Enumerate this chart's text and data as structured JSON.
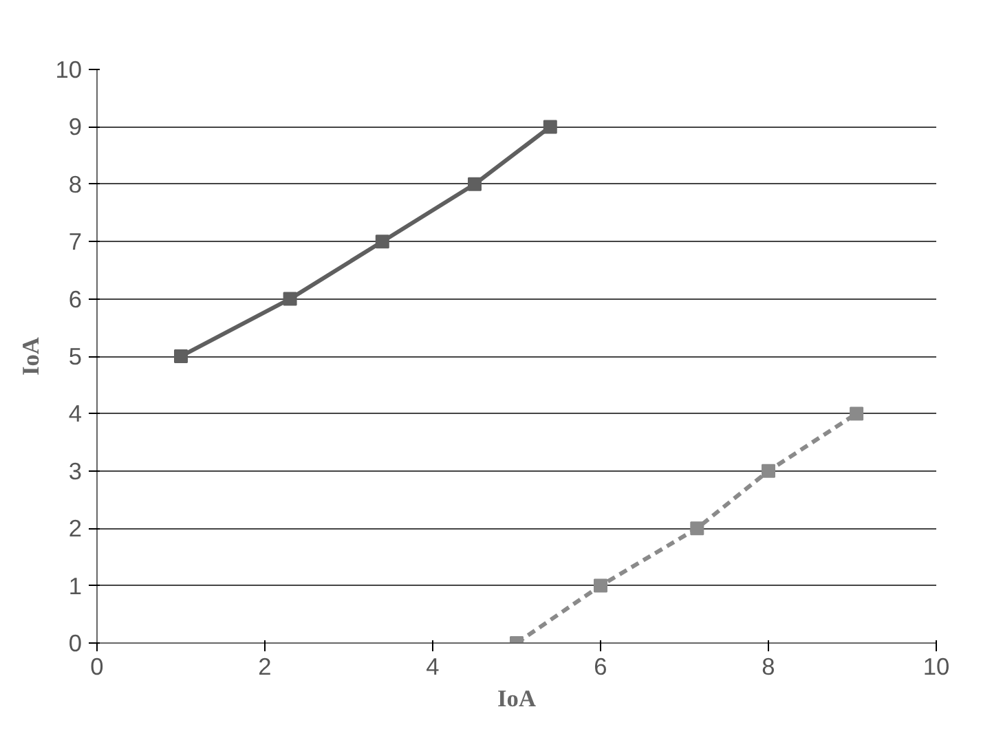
{
  "chart_data": {
    "type": "line",
    "xlabel": "IoA",
    "ylabel": "IoA",
    "series": [
      {
        "color": "#5f5f5f",
        "x": [
          1.0,
          2.3,
          3.4,
          4.5,
          5.4
        ],
        "values": [
          5,
          6,
          7,
          8,
          9
        ],
        "line_style": "solid"
      },
      {
        "color": "#8a8a8a",
        "x": [
          5.0,
          6.0,
          7.15,
          8.0,
          9.05
        ],
        "values": [
          0,
          1,
          2,
          3,
          4
        ],
        "line_style": "dashed"
      }
    ],
    "xlim": [
      0,
      10
    ],
    "ylim": [
      0,
      10
    ],
    "xticks": [
      0,
      2,
      4,
      6,
      8,
      10
    ],
    "yticks": [
      0,
      1,
      2,
      3,
      4,
      5,
      6,
      7,
      8,
      9,
      10
    ],
    "grid": "y",
    "marker": "square"
  }
}
